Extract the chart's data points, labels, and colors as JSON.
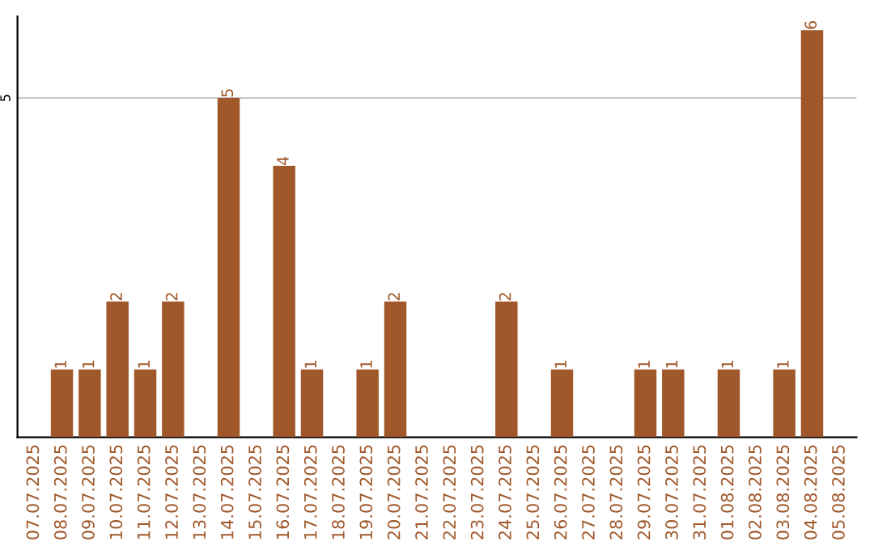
{
  "chart_data": {
    "type": "bar",
    "categories": [
      "07.07.2025",
      "08.07.2025",
      "09.07.2025",
      "10.07.2025",
      "11.07.2025",
      "12.07.2025",
      "13.07.2025",
      "14.07.2025",
      "15.07.2025",
      "16.07.2025",
      "17.07.2025",
      "18.07.2025",
      "19.07.2025",
      "20.07.2025",
      "21.07.2025",
      "22.07.2025",
      "23.07.2025",
      "24.07.2025",
      "25.07.2025",
      "26.07.2025",
      "27.07.2025",
      "28.07.2025",
      "29.07.2025",
      "30.07.2025",
      "31.07.2025",
      "01.08.2025",
      "02.08.2025",
      "03.08.2025",
      "04.08.2025",
      "05.08.2025"
    ],
    "values": [
      null,
      1,
      1,
      2,
      1,
      2,
      null,
      5,
      null,
      4,
      1,
      null,
      1,
      2,
      null,
      null,
      null,
      2,
      null,
      1,
      null,
      null,
      1,
      1,
      null,
      1,
      null,
      1,
      6,
      null
    ],
    "color": "#a0582a",
    "ylim": [
      0,
      6.2
    ],
    "yticks": [
      5
    ],
    "grid": "y",
    "data_labels": true
  }
}
